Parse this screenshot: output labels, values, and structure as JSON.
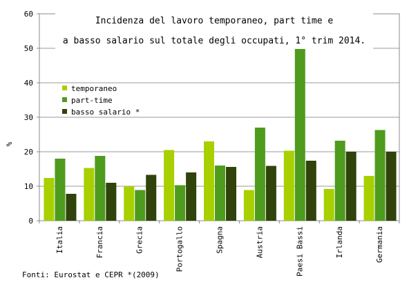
{
  "chart_data": {
    "type": "bar",
    "title_line1": "Incidenza del lavoro temporaneo, part time e",
    "title_line2": "a basso salario sul totale degli occupati, 1° trim 2014.",
    "ylabel": "%",
    "ylim": [
      0,
      60
    ],
    "yticks": [
      "0",
      "10",
      "20",
      "30",
      "40",
      "50",
      "60"
    ],
    "grid": true,
    "legend_position": "top-left",
    "categories": [
      "Italia",
      "Francia",
      "Grecia",
      "Portogallo",
      "Spagna",
      "Austria",
      "Paesi Bassi",
      "Irlanda",
      "Germania"
    ],
    "series": [
      {
        "name": "temporaneo",
        "color": "#a8d000",
        "values": [
          12.4,
          15.3,
          10.0,
          20.5,
          23.0,
          8.9,
          20.3,
          9.2,
          13.0
        ]
      },
      {
        "name": "part-time",
        "color": "#4e9b1e",
        "values": [
          18.0,
          18.8,
          8.9,
          10.3,
          16.0,
          27.0,
          49.8,
          23.2,
          26.3
        ]
      },
      {
        "name": "basso salario *",
        "color": "#2f430a",
        "values": [
          7.8,
          11.0,
          13.3,
          14.0,
          15.6,
          15.9,
          17.4,
          20.0,
          20.0
        ]
      }
    ],
    "source": "Fonti: Eurostat e CEPR *(2009)"
  }
}
